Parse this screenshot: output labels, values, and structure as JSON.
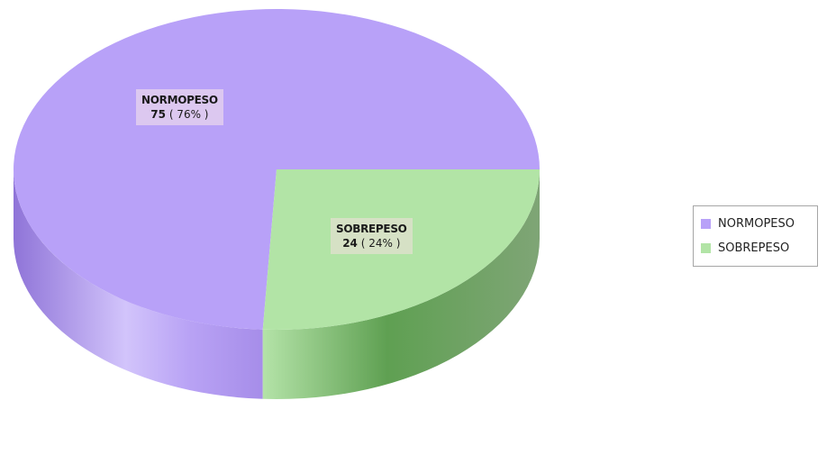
{
  "chart_data": {
    "type": "pie",
    "style": "3d",
    "categories": [
      "NORMOPESO",
      "SOBREPESO"
    ],
    "values": [
      75,
      24
    ],
    "percents": [
      "( 76% )",
      "( 24% )"
    ],
    "colors": {
      "NORMOPESO": "#b8a1f8",
      "SOBREPESO": "#b2e4a6"
    },
    "side_colors": {
      "NORMOPESO": "#a58ae6",
      "SOBREPESO": "#72b865"
    },
    "label_bg": {
      "NORMOPESO": "#dcc8f0",
      "SOBREPESO": "#d6e1c5"
    },
    "legend": {
      "position": "right",
      "items": [
        {
          "label": "NORMOPESO",
          "color": "#b8a1f8"
        },
        {
          "label": "SOBREPESO",
          "color": "#b2e4a6"
        }
      ]
    }
  }
}
